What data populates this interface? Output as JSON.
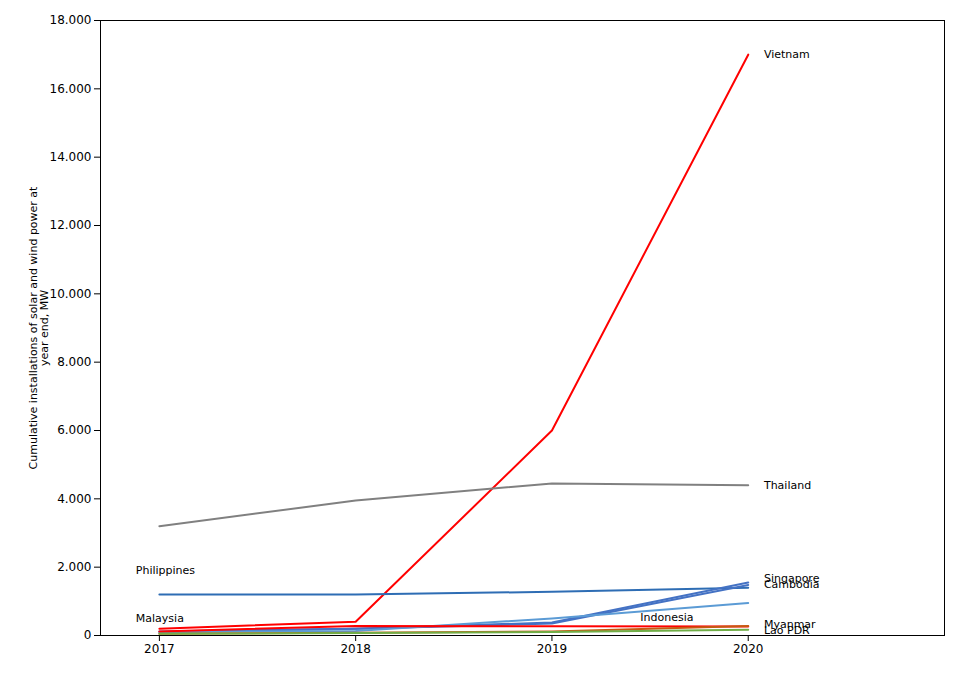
{
  "chart_data": {
    "type": "line",
    "ylabel": "Cumulative installations of solar and wind power at\nyear end, MW",
    "x": [
      2017,
      2018,
      2019,
      2020
    ],
    "series": [
      {
        "name": "Vietnam",
        "color": "#FF0000",
        "values": [
          200,
          400,
          6000,
          17000
        ]
      },
      {
        "name": "Thailand",
        "color": "#808080",
        "values": [
          3200,
          3950,
          4450,
          4400
        ]
      },
      {
        "name": "Philippines",
        "color": "#2E6DB4",
        "values": [
          1200,
          1200,
          1280,
          1400
        ]
      },
      {
        "name": "Singapore",
        "color": "#4472C4",
        "values": [
          120,
          200,
          380,
          1550
        ]
      },
      {
        "name": "Cambodia",
        "color": "#4472C4",
        "values": [
          100,
          200,
          350,
          1480
        ]
      },
      {
        "name": "Indonesia",
        "color": "#5B9BD5",
        "values": [
          100,
          130,
          500,
          950
        ]
      },
      {
        "name": "Malaysia",
        "color": "#FF0000",
        "values": [
          120,
          280,
          270,
          260
        ]
      },
      {
        "name": "Myanmar",
        "color": "#C55A11",
        "values": [
          50,
          80,
          120,
          280
        ]
      },
      {
        "name": "Lao PDR",
        "color": "#70AD47",
        "values": [
          50,
          70,
          100,
          170
        ]
      }
    ],
    "annotations": [
      {
        "text": "Vietnam",
        "x": 2020.08,
        "y": 17000
      },
      {
        "text": "Thailand",
        "x": 2020.08,
        "y": 4400
      },
      {
        "text": "Philippines",
        "x": 2016.88,
        "y": 1900
      },
      {
        "text": "Singapore",
        "x": 2020.08,
        "y": 1680
      },
      {
        "text": "Cambodia",
        "x": 2020.08,
        "y": 1480
      },
      {
        "text": "Indonesia",
        "x": 2019.45,
        "y": 540
      },
      {
        "text": "Malaysia",
        "x": 2016.88,
        "y": 500
      },
      {
        "text": "Myanmar",
        "x": 2020.08,
        "y": 330
      },
      {
        "text": "Lao PDR",
        "x": 2020.08,
        "y": 135
      }
    ],
    "xlim": [
      2016.7,
      2021.0
    ],
    "xticks": [
      2017,
      2018,
      2019,
      2020
    ],
    "ylim": [
      0,
      18000
    ],
    "yticks": [
      0,
      {
        "value": 2000,
        "label": "2.000"
      },
      {
        "value": 4000,
        "label": "4.000"
      },
      {
        "value": 6000,
        "label": "6.000"
      },
      {
        "value": 8000,
        "label": "8.000"
      },
      {
        "value": 10000,
        "label": "10.000"
      },
      {
        "value": 12000,
        "label": "12.000"
      },
      {
        "value": 14000,
        "label": "14.000"
      },
      {
        "value": 16000,
        "label": "16.000"
      },
      {
        "value": 18000,
        "label": "18.000"
      }
    ],
    "grid": false
  }
}
